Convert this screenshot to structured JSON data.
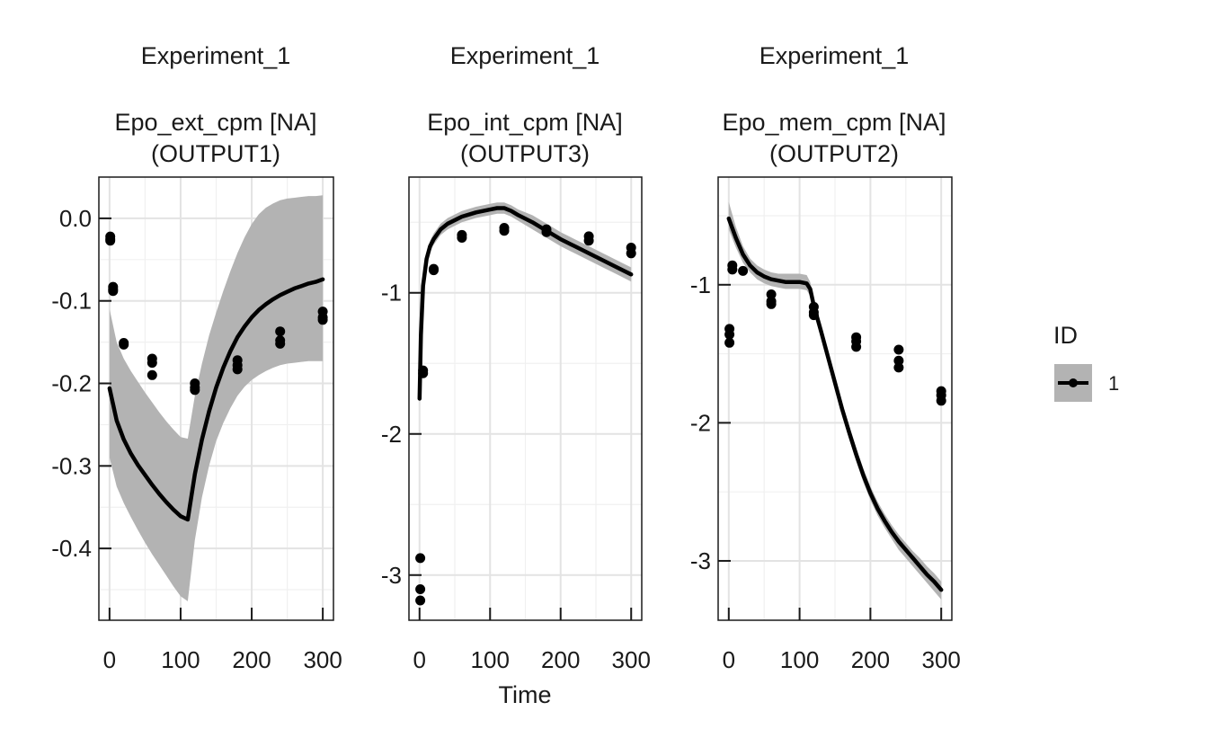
{
  "chart_data": {
    "type": "line",
    "xlabel": "Time",
    "ylabel": "",
    "grid": true,
    "legend": {
      "title": "ID",
      "placement": "right",
      "entries": [
        "1"
      ],
      "colors": {
        "line": "#000000",
        "band": "#b3b3b3",
        "point": "#000000"
      }
    },
    "panels": [
      {
        "experiment": "Experiment_1",
        "observable": "Epo_ext_cpm [NA]",
        "output": "(OUTPUT1)",
        "xlim": [
          -15,
          315
        ],
        "ylim": [
          -0.487,
          0.05
        ],
        "x_ticks": [
          0,
          100,
          200,
          300
        ],
        "y_ticks": [
          0.0,
          -0.1,
          -0.2,
          -0.3,
          -0.4
        ],
        "y_tick_labels": [
          "0.0",
          "-0.1",
          "-0.2",
          "-0.3",
          "-0.4"
        ],
        "fit": {
          "x": [
            0,
            10,
            20,
            30,
            40,
            50,
            60,
            70,
            80,
            90,
            100,
            110,
            120,
            130,
            140,
            150,
            160,
            170,
            180,
            190,
            200,
            210,
            220,
            230,
            240,
            250,
            260,
            270,
            280,
            290,
            300
          ],
          "y": [
            -0.206,
            -0.245,
            -0.268,
            -0.285,
            -0.299,
            -0.311,
            -0.323,
            -0.334,
            -0.344,
            -0.353,
            -0.361,
            -0.365,
            -0.31,
            -0.268,
            -0.234,
            -0.205,
            -0.181,
            -0.161,
            -0.144,
            -0.131,
            -0.12,
            -0.111,
            -0.104,
            -0.098,
            -0.093,
            -0.089,
            -0.085,
            -0.082,
            -0.079,
            -0.077,
            -0.074
          ],
          "lower": [
            -0.29,
            -0.325,
            -0.345,
            -0.362,
            -0.378,
            -0.393,
            -0.407,
            -0.42,
            -0.433,
            -0.446,
            -0.458,
            -0.464,
            -0.39,
            -0.338,
            -0.3,
            -0.27,
            -0.248,
            -0.23,
            -0.215,
            -0.204,
            -0.196,
            -0.19,
            -0.185,
            -0.181,
            -0.178,
            -0.176,
            -0.175,
            -0.174,
            -0.173,
            -0.173,
            -0.173
          ],
          "upper": [
            -0.11,
            -0.15,
            -0.17,
            -0.185,
            -0.198,
            -0.211,
            -0.223,
            -0.235,
            -0.246,
            -0.256,
            -0.265,
            -0.267,
            -0.215,
            -0.176,
            -0.142,
            -0.114,
            -0.088,
            -0.064,
            -0.042,
            -0.023,
            -0.007,
            0.005,
            0.013,
            0.018,
            0.022,
            0.024,
            0.025,
            0.026,
            0.027,
            0.027,
            0.028
          ]
        },
        "data_points": [
          {
            "x": 1,
            "y": -0.022
          },
          {
            "x": 1,
            "y": -0.025
          },
          {
            "x": 1,
            "y": -0.027
          },
          {
            "x": 5,
            "y": -0.083
          },
          {
            "x": 5,
            "y": -0.086
          },
          {
            "x": 5,
            "y": -0.088
          },
          {
            "x": 20,
            "y": -0.151
          },
          {
            "x": 20,
            "y": -0.153
          },
          {
            "x": 60,
            "y": -0.17
          },
          {
            "x": 60,
            "y": -0.175
          },
          {
            "x": 60,
            "y": -0.19
          },
          {
            "x": 120,
            "y": -0.2
          },
          {
            "x": 120,
            "y": -0.205
          },
          {
            "x": 120,
            "y": -0.208
          },
          {
            "x": 180,
            "y": -0.172
          },
          {
            "x": 180,
            "y": -0.178
          },
          {
            "x": 180,
            "y": -0.183
          },
          {
            "x": 240,
            "y": -0.137
          },
          {
            "x": 240,
            "y": -0.148
          },
          {
            "x": 240,
            "y": -0.152
          },
          {
            "x": 300,
            "y": -0.113
          },
          {
            "x": 300,
            "y": -0.12
          },
          {
            "x": 300,
            "y": -0.123
          }
        ]
      },
      {
        "experiment": "Experiment_1",
        "observable": "Epo_int_cpm [NA]",
        "output": "(OUTPUT3)",
        "xlim": [
          -15,
          315
        ],
        "ylim": [
          -3.32,
          -0.18
        ],
        "x_ticks": [
          0,
          100,
          200,
          300
        ],
        "y_ticks": [
          -1,
          -2,
          -3
        ],
        "y_tick_labels": [
          "-1",
          "-2",
          "-3"
        ],
        "fit": {
          "x": [
            0,
            2,
            5,
            10,
            15,
            20,
            30,
            40,
            60,
            80,
            100,
            110,
            120,
            130,
            140,
            160,
            180,
            200,
            220,
            240,
            260,
            280,
            300
          ],
          "y": [
            -1.75,
            -1.3,
            -0.95,
            -0.76,
            -0.67,
            -0.62,
            -0.55,
            -0.51,
            -0.46,
            -0.43,
            -0.41,
            -0.4,
            -0.4,
            -0.42,
            -0.45,
            -0.5,
            -0.56,
            -0.62,
            -0.67,
            -0.72,
            -0.77,
            -0.82,
            -0.87
          ],
          "lower": [
            -1.75,
            -1.33,
            -0.99,
            -0.8,
            -0.71,
            -0.66,
            -0.59,
            -0.55,
            -0.5,
            -0.47,
            -0.45,
            -0.44,
            -0.44,
            -0.46,
            -0.49,
            -0.55,
            -0.61,
            -0.67,
            -0.72,
            -0.77,
            -0.82,
            -0.87,
            -0.92
          ],
          "upper": [
            -1.75,
            -1.27,
            -0.91,
            -0.72,
            -0.63,
            -0.58,
            -0.51,
            -0.47,
            -0.42,
            -0.39,
            -0.37,
            -0.36,
            -0.36,
            -0.38,
            -0.41,
            -0.45,
            -0.51,
            -0.57,
            -0.62,
            -0.67,
            -0.72,
            -0.77,
            -0.82
          ]
        },
        "data_points": [
          {
            "x": 1,
            "y": -2.88
          },
          {
            "x": 1,
            "y": -3.1
          },
          {
            "x": 1,
            "y": -3.18
          },
          {
            "x": 5,
            "y": -1.55
          },
          {
            "x": 5,
            "y": -1.57
          },
          {
            "x": 20,
            "y": -0.83
          },
          {
            "x": 20,
            "y": -0.84
          },
          {
            "x": 60,
            "y": -0.59
          },
          {
            "x": 60,
            "y": -0.61
          },
          {
            "x": 120,
            "y": -0.54
          },
          {
            "x": 120,
            "y": -0.56
          },
          {
            "x": 180,
            "y": -0.55
          },
          {
            "x": 180,
            "y": -0.57
          },
          {
            "x": 240,
            "y": -0.6
          },
          {
            "x": 240,
            "y": -0.63
          },
          {
            "x": 300,
            "y": -0.68
          },
          {
            "x": 300,
            "y": -0.72
          }
        ]
      },
      {
        "experiment": "Experiment_1",
        "observable": "Epo_mem_cpm [NA]",
        "output": "(OUTPUT2)",
        "xlim": [
          -15,
          315
        ],
        "ylim": [
          -3.43,
          -0.22
        ],
        "x_ticks": [
          0,
          100,
          200,
          300
        ],
        "y_ticks": [
          -1,
          -2,
          -3
        ],
        "y_tick_labels": [
          "-1",
          "-2",
          "-3"
        ],
        "fit": {
          "x": [
            0,
            10,
            20,
            30,
            40,
            50,
            60,
            70,
            80,
            90,
            100,
            110,
            115,
            120,
            130,
            140,
            150,
            160,
            170,
            180,
            190,
            200,
            210,
            220,
            230,
            240,
            250,
            260,
            270,
            280,
            290,
            300
          ],
          "y": [
            -0.52,
            -0.66,
            -0.78,
            -0.86,
            -0.91,
            -0.94,
            -0.96,
            -0.97,
            -0.98,
            -0.98,
            -0.98,
            -0.99,
            -1.03,
            -1.15,
            -1.33,
            -1.52,
            -1.71,
            -1.9,
            -2.07,
            -2.23,
            -2.38,
            -2.51,
            -2.62,
            -2.71,
            -2.79,
            -2.86,
            -2.92,
            -2.98,
            -3.04,
            -3.1,
            -3.15,
            -3.21
          ],
          "lower": [
            -0.6,
            -0.73,
            -0.84,
            -0.91,
            -0.96,
            -0.99,
            -1.01,
            -1.02,
            -1.03,
            -1.03,
            -1.03,
            -1.04,
            -1.08,
            -1.2,
            -1.38,
            -1.57,
            -1.76,
            -1.95,
            -2.12,
            -2.28,
            -2.43,
            -2.56,
            -2.67,
            -2.76,
            -2.84,
            -2.92,
            -2.98,
            -3.04,
            -3.1,
            -3.16,
            -3.22,
            -3.28
          ],
          "upper": [
            -0.4,
            -0.58,
            -0.72,
            -0.81,
            -0.86,
            -0.89,
            -0.91,
            -0.92,
            -0.92,
            -0.92,
            -0.92,
            -0.93,
            -0.98,
            -1.1,
            -1.28,
            -1.47,
            -1.66,
            -1.85,
            -2.02,
            -2.18,
            -2.33,
            -2.46,
            -2.57,
            -2.66,
            -2.74,
            -2.81,
            -2.87,
            -2.93,
            -2.98,
            -3.04,
            -3.09,
            -3.15
          ]
        },
        "data_points": [
          {
            "x": 1,
            "y": -1.32
          },
          {
            "x": 1,
            "y": -1.36
          },
          {
            "x": 1,
            "y": -1.42
          },
          {
            "x": 5,
            "y": -0.86
          },
          {
            "x": 5,
            "y": -0.89
          },
          {
            "x": 20,
            "y": -0.9
          },
          {
            "x": 60,
            "y": -1.07
          },
          {
            "x": 60,
            "y": -1.12
          },
          {
            "x": 60,
            "y": -1.14
          },
          {
            "x": 120,
            "y": -1.16
          },
          {
            "x": 120,
            "y": -1.2
          },
          {
            "x": 120,
            "y": -1.22
          },
          {
            "x": 180,
            "y": -1.38
          },
          {
            "x": 180,
            "y": -1.41
          },
          {
            "x": 180,
            "y": -1.45
          },
          {
            "x": 240,
            "y": -1.47
          },
          {
            "x": 240,
            "y": -1.55
          },
          {
            "x": 240,
            "y": -1.6
          },
          {
            "x": 300,
            "y": -1.77
          },
          {
            "x": 300,
            "y": -1.8
          },
          {
            "x": 300,
            "y": -1.84
          }
        ]
      }
    ]
  }
}
